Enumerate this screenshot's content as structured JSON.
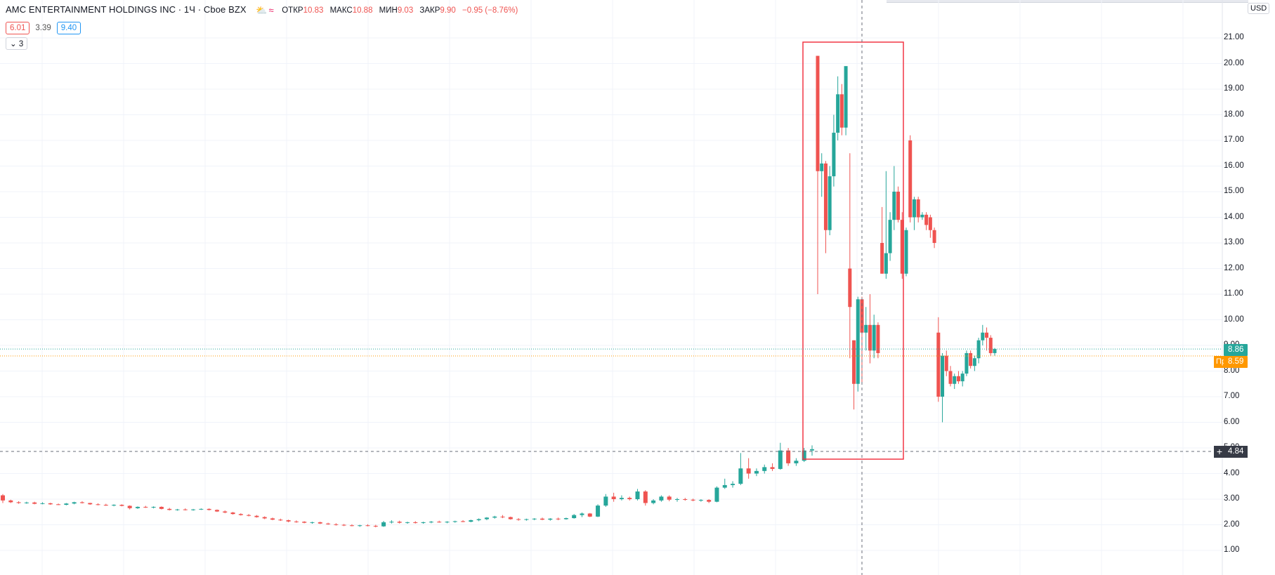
{
  "header": {
    "title": "AMC ENTERTAINMENT HOLDINGS INC · 1Ч · Cboe BZX",
    "icons": [
      "sun-cloud-icon",
      "wave-icon"
    ],
    "ohlc": {
      "open_label": "ОТКР",
      "open": "10.83",
      "high_label": "МАКС",
      "high": "10.88",
      "low_label": "МИН",
      "low": "9.03",
      "close_label": "ЗАКР",
      "close": "9.90",
      "change": "−0.95 (−8.76%)"
    },
    "bid": "6.01",
    "spread": "3.39",
    "ask": "9.40",
    "indicators_toggle": "3"
  },
  "axis": {
    "currency": "USD",
    "ticks": [
      "21.00",
      "20.00",
      "19.00",
      "18.00",
      "17.00",
      "16.00",
      "15.00",
      "14.00",
      "13.00",
      "12.00",
      "11.00",
      "10.00",
      "9.00",
      "8.00",
      "7.00",
      "6.00",
      "5.00",
      "4.00",
      "3.00",
      "2.00",
      "1.00"
    ],
    "last_price": "8.86",
    "pre_label": "Пре-",
    "pre_price": "8.59",
    "crosshair_price": "4.84"
  },
  "colors": {
    "up": "#26a69a",
    "down": "#ef5350",
    "grid": "#f0f3fa",
    "highlight_box": "#f23645",
    "pre_line": "#ff9800",
    "last_line": "#26a69a"
  },
  "chart_data": {
    "type": "candlestick",
    "ylim": [
      0.5,
      22
    ],
    "grid": true,
    "candles": [
      {
        "o": 3.15,
        "h": 3.2,
        "l": 2.85,
        "c": 2.95
      },
      {
        "o": 2.95,
        "h": 2.98,
        "l": 2.85,
        "c": 2.88
      },
      {
        "o": 2.88,
        "h": 2.92,
        "l": 2.82,
        "c": 2.85
      },
      {
        "o": 2.85,
        "h": 2.9,
        "l": 2.82,
        "c": 2.87
      },
      {
        "o": 2.87,
        "h": 2.9,
        "l": 2.8,
        "c": 2.82
      },
      {
        "o": 2.82,
        "h": 2.88,
        "l": 2.8,
        "c": 2.84
      },
      {
        "o": 2.84,
        "h": 2.86,
        "l": 2.78,
        "c": 2.8
      },
      {
        "o": 2.8,
        "h": 2.83,
        "l": 2.77,
        "c": 2.78
      },
      {
        "o": 2.78,
        "h": 2.85,
        "l": 2.76,
        "c": 2.83
      },
      {
        "o": 2.83,
        "h": 2.9,
        "l": 2.8,
        "c": 2.88
      },
      {
        "o": 2.88,
        "h": 2.92,
        "l": 2.83,
        "c": 2.85
      },
      {
        "o": 2.85,
        "h": 2.86,
        "l": 2.78,
        "c": 2.8
      },
      {
        "o": 2.8,
        "h": 2.84,
        "l": 2.76,
        "c": 2.78
      },
      {
        "o": 2.78,
        "h": 2.82,
        "l": 2.74,
        "c": 2.76
      },
      {
        "o": 2.76,
        "h": 2.8,
        "l": 2.72,
        "c": 2.78
      },
      {
        "o": 2.78,
        "h": 2.8,
        "l": 2.72,
        "c": 2.74
      },
      {
        "o": 2.74,
        "h": 2.76,
        "l": 2.6,
        "c": 2.65
      },
      {
        "o": 2.65,
        "h": 2.72,
        "l": 2.62,
        "c": 2.7
      },
      {
        "o": 2.7,
        "h": 2.74,
        "l": 2.66,
        "c": 2.68
      },
      {
        "o": 2.68,
        "h": 2.72,
        "l": 2.64,
        "c": 2.7
      },
      {
        "o": 2.7,
        "h": 2.72,
        "l": 2.6,
        "c": 2.62
      },
      {
        "o": 2.62,
        "h": 2.66,
        "l": 2.56,
        "c": 2.58
      },
      {
        "o": 2.58,
        "h": 2.62,
        "l": 2.55,
        "c": 2.6
      },
      {
        "o": 2.6,
        "h": 2.64,
        "l": 2.56,
        "c": 2.58
      },
      {
        "o": 2.58,
        "h": 2.62,
        "l": 2.55,
        "c": 2.6
      },
      {
        "o": 2.6,
        "h": 2.64,
        "l": 2.58,
        "c": 2.62
      },
      {
        "o": 2.62,
        "h": 2.64,
        "l": 2.56,
        "c": 2.58
      },
      {
        "o": 2.58,
        "h": 2.6,
        "l": 2.5,
        "c": 2.52
      },
      {
        "o": 2.52,
        "h": 2.56,
        "l": 2.45,
        "c": 2.48
      },
      {
        "o": 2.48,
        "h": 2.5,
        "l": 2.4,
        "c": 2.42
      },
      {
        "o": 2.42,
        "h": 2.45,
        "l": 2.36,
        "c": 2.38
      },
      {
        "o": 2.38,
        "h": 2.42,
        "l": 2.33,
        "c": 2.35
      },
      {
        "o": 2.35,
        "h": 2.38,
        "l": 2.28,
        "c": 2.3
      },
      {
        "o": 2.3,
        "h": 2.33,
        "l": 2.22,
        "c": 2.25
      },
      {
        "o": 2.25,
        "h": 2.28,
        "l": 2.18,
        "c": 2.2
      },
      {
        "o": 2.2,
        "h": 2.24,
        "l": 2.15,
        "c": 2.18
      },
      {
        "o": 2.18,
        "h": 2.2,
        "l": 2.1,
        "c": 2.13
      },
      {
        "o": 2.13,
        "h": 2.17,
        "l": 2.08,
        "c": 2.12
      },
      {
        "o": 2.12,
        "h": 2.14,
        "l": 2.06,
        "c": 2.08
      },
      {
        "o": 2.08,
        "h": 2.12,
        "l": 2.04,
        "c": 2.1
      },
      {
        "o": 2.1,
        "h": 2.12,
        "l": 2.03,
        "c": 2.05
      },
      {
        "o": 2.05,
        "h": 2.08,
        "l": 2.0,
        "c": 2.02
      },
      {
        "o": 2.02,
        "h": 2.06,
        "l": 1.97,
        "c": 2.0
      },
      {
        "o": 2.0,
        "h": 2.03,
        "l": 1.95,
        "c": 1.98
      },
      {
        "o": 1.98,
        "h": 2.02,
        "l": 1.94,
        "c": 1.96
      },
      {
        "o": 1.96,
        "h": 2.0,
        "l": 1.92,
        "c": 1.98
      },
      {
        "o": 1.98,
        "h": 2.02,
        "l": 1.94,
        "c": 1.96
      },
      {
        "o": 1.96,
        "h": 2.0,
        "l": 1.9,
        "c": 1.94
      },
      {
        "o": 1.94,
        "h": 2.15,
        "l": 1.92,
        "c": 2.1
      },
      {
        "o": 2.1,
        "h": 2.18,
        "l": 2.05,
        "c": 2.12
      },
      {
        "o": 2.12,
        "h": 2.16,
        "l": 2.05,
        "c": 2.08
      },
      {
        "o": 2.08,
        "h": 2.12,
        "l": 2.04,
        "c": 2.1
      },
      {
        "o": 2.1,
        "h": 2.14,
        "l": 2.05,
        "c": 2.07
      },
      {
        "o": 2.07,
        "h": 2.12,
        "l": 2.04,
        "c": 2.1
      },
      {
        "o": 2.1,
        "h": 2.15,
        "l": 2.06,
        "c": 2.12
      },
      {
        "o": 2.12,
        "h": 2.16,
        "l": 2.08,
        "c": 2.1
      },
      {
        "o": 2.1,
        "h": 2.14,
        "l": 2.06,
        "c": 2.12
      },
      {
        "o": 2.12,
        "h": 2.16,
        "l": 2.08,
        "c": 2.14
      },
      {
        "o": 2.14,
        "h": 2.18,
        "l": 2.1,
        "c": 2.12
      },
      {
        "o": 2.12,
        "h": 2.2,
        "l": 2.1,
        "c": 2.18
      },
      {
        "o": 2.18,
        "h": 2.25,
        "l": 2.14,
        "c": 2.22
      },
      {
        "o": 2.22,
        "h": 2.3,
        "l": 2.18,
        "c": 2.28
      },
      {
        "o": 2.28,
        "h": 2.35,
        "l": 2.24,
        "c": 2.32
      },
      {
        "o": 2.32,
        "h": 2.38,
        "l": 2.26,
        "c": 2.3
      },
      {
        "o": 2.3,
        "h": 2.32,
        "l": 2.2,
        "c": 2.22
      },
      {
        "o": 2.22,
        "h": 2.26,
        "l": 2.16,
        "c": 2.2
      },
      {
        "o": 2.2,
        "h": 2.24,
        "l": 2.16,
        "c": 2.22
      },
      {
        "o": 2.22,
        "h": 2.26,
        "l": 2.18,
        "c": 2.24
      },
      {
        "o": 2.24,
        "h": 2.28,
        "l": 2.18,
        "c": 2.2
      },
      {
        "o": 2.2,
        "h": 2.26,
        "l": 2.16,
        "c": 2.24
      },
      {
        "o": 2.24,
        "h": 2.28,
        "l": 2.18,
        "c": 2.22
      },
      {
        "o": 2.22,
        "h": 2.28,
        "l": 2.2,
        "c": 2.26
      },
      {
        "o": 2.26,
        "h": 2.42,
        "l": 2.24,
        "c": 2.38
      },
      {
        "o": 2.38,
        "h": 2.48,
        "l": 2.3,
        "c": 2.44
      },
      {
        "o": 2.44,
        "h": 2.46,
        "l": 2.3,
        "c": 2.32
      },
      {
        "o": 2.32,
        "h": 2.8,
        "l": 2.3,
        "c": 2.75
      },
      {
        "o": 2.75,
        "h": 3.2,
        "l": 2.7,
        "c": 3.1
      },
      {
        "o": 3.1,
        "h": 3.25,
        "l": 2.9,
        "c": 3.0
      },
      {
        "o": 3.0,
        "h": 3.15,
        "l": 2.95,
        "c": 3.05
      },
      {
        "o": 3.05,
        "h": 3.1,
        "l": 2.95,
        "c": 3.0
      },
      {
        "o": 3.0,
        "h": 3.4,
        "l": 2.95,
        "c": 3.3
      },
      {
        "o": 3.3,
        "h": 3.35,
        "l": 2.75,
        "c": 2.85
      },
      {
        "o": 2.85,
        "h": 3.0,
        "l": 2.8,
        "c": 2.95
      },
      {
        "o": 2.95,
        "h": 3.15,
        "l": 2.9,
        "c": 3.1
      },
      {
        "o": 3.1,
        "h": 3.15,
        "l": 2.92,
        "c": 2.98
      },
      {
        "o": 2.98,
        "h": 3.05,
        "l": 2.9,
        "c": 3.0
      },
      {
        "o": 3.0,
        "h": 3.05,
        "l": 2.94,
        "c": 2.98
      },
      {
        "o": 2.98,
        "h": 3.02,
        "l": 2.92,
        "c": 2.95
      },
      {
        "o": 2.95,
        "h": 3.0,
        "l": 2.9,
        "c": 2.97
      },
      {
        "o": 2.97,
        "h": 3.0,
        "l": 2.85,
        "c": 2.9
      },
      {
        "o": 2.9,
        "h": 3.5,
        "l": 2.88,
        "c": 3.45
      },
      {
        "o": 3.45,
        "h": 3.8,
        "l": 3.4,
        "c": 3.55
      },
      {
        "o": 3.55,
        "h": 3.7,
        "l": 3.45,
        "c": 3.6
      },
      {
        "o": 3.6,
        "h": 4.8,
        "l": 3.55,
        "c": 4.2
      },
      {
        "o": 4.2,
        "h": 4.6,
        "l": 3.8,
        "c": 4.0
      },
      {
        "o": 4.0,
        "h": 4.2,
        "l": 3.9,
        "c": 4.1
      },
      {
        "o": 4.1,
        "h": 4.35,
        "l": 4.0,
        "c": 4.25
      },
      {
        "o": 4.25,
        "h": 4.4,
        "l": 4.1,
        "c": 4.18
      },
      {
        "o": 4.18,
        "h": 5.2,
        "l": 4.15,
        "c": 4.9
      },
      {
        "o": 4.9,
        "h": 5.0,
        "l": 4.3,
        "c": 4.4
      },
      {
        "o": 4.4,
        "h": 4.6,
        "l": 4.3,
        "c": 4.5
      },
      {
        "o": 4.5,
        "h": 5.0,
        "l": 4.45,
        "c": 4.9
      },
      {
        "o": 4.9,
        "h": 5.1,
        "l": 4.7,
        "c": 4.95
      },
      {
        "o": 20.3,
        "h": 20.3,
        "l": 11.0,
        "c": 15.8
      },
      {
        "o": 15.8,
        "h": 16.5,
        "l": 14.8,
        "c": 16.1
      },
      {
        "o": 16.1,
        "h": 16.2,
        "l": 12.6,
        "c": 13.5
      },
      {
        "o": 13.5,
        "h": 16.0,
        "l": 13.3,
        "c": 15.6
      },
      {
        "o": 15.6,
        "h": 18.0,
        "l": 15.2,
        "c": 17.3
      },
      {
        "o": 17.3,
        "h": 19.5,
        "l": 17.0,
        "c": 18.8
      },
      {
        "o": 18.8,
        "h": 19.2,
        "l": 17.2,
        "c": 17.5
      },
      {
        "o": 17.5,
        "h": 19.8,
        "l": 17.2,
        "c": 19.9
      },
      {
        "o": 12.0,
        "h": 16.5,
        "l": 8.5,
        "c": 10.5
      },
      {
        "o": 9.2,
        "h": 9.2,
        "l": 6.5,
        "c": 7.5
      },
      {
        "o": 7.5,
        "h": 10.9,
        "l": 7.2,
        "c": 10.8
      },
      {
        "o": 10.8,
        "h": 10.9,
        "l": 7.5,
        "c": 9.5
      },
      {
        "o": 9.5,
        "h": 10.5,
        "l": 8.8,
        "c": 9.8
      },
      {
        "o": 9.8,
        "h": 11.0,
        "l": 8.3,
        "c": 8.8
      },
      {
        "o": 8.8,
        "h": 10.2,
        "l": 8.5,
        "c": 9.8
      },
      {
        "o": 9.8,
        "h": 9.9,
        "l": 8.5,
        "c": 8.7
      },
      {
        "o": 13.0,
        "h": 14.4,
        "l": 11.8,
        "c": 11.8
      },
      {
        "o": 11.8,
        "h": 15.8,
        "l": 11.6,
        "c": 12.6
      },
      {
        "o": 12.6,
        "h": 14.2,
        "l": 12.3,
        "c": 13.9
      },
      {
        "o": 13.9,
        "h": 16.0,
        "l": 13.5,
        "c": 15.0
      },
      {
        "o": 15.0,
        "h": 15.2,
        "l": 13.8,
        "c": 13.9
      },
      {
        "o": 13.9,
        "h": 14.2,
        "l": 11.6,
        "c": 11.8
      },
      {
        "o": 11.8,
        "h": 13.6,
        "l": 11.7,
        "c": 13.5
      },
      {
        "o": 17.0,
        "h": 17.2,
        "l": 13.8,
        "c": 14.0
      },
      {
        "o": 14.0,
        "h": 14.8,
        "l": 13.5,
        "c": 14.7
      },
      {
        "o": 14.7,
        "h": 14.8,
        "l": 13.8,
        "c": 14.0
      },
      {
        "o": 14.0,
        "h": 14.2,
        "l": 13.9,
        "c": 14.1
      },
      {
        "o": 14.1,
        "h": 14.2,
        "l": 13.5,
        "c": 13.7
      },
      {
        "o": 14.0,
        "h": 14.1,
        "l": 13.2,
        "c": 13.5
      },
      {
        "o": 13.5,
        "h": 13.6,
        "l": 12.8,
        "c": 13.0
      },
      {
        "o": 9.5,
        "h": 10.1,
        "l": 6.8,
        "c": 7.0
      },
      {
        "o": 7.0,
        "h": 8.7,
        "l": 6.0,
        "c": 8.6
      },
      {
        "o": 8.6,
        "h": 8.8,
        "l": 7.8,
        "c": 8.0
      },
      {
        "o": 8.0,
        "h": 8.2,
        "l": 7.4,
        "c": 7.5
      },
      {
        "o": 7.5,
        "h": 7.9,
        "l": 7.3,
        "c": 7.8
      },
      {
        "o": 7.8,
        "h": 8.0,
        "l": 7.5,
        "c": 7.6
      },
      {
        "o": 7.6,
        "h": 8.0,
        "l": 7.4,
        "c": 7.9
      },
      {
        "o": 7.9,
        "h": 8.8,
        "l": 7.8,
        "c": 8.7
      },
      {
        "o": 8.7,
        "h": 8.8,
        "l": 8.1,
        "c": 8.2
      },
      {
        "o": 8.2,
        "h": 8.6,
        "l": 8.0,
        "c": 8.5
      },
      {
        "o": 8.5,
        "h": 9.3,
        "l": 8.3,
        "c": 9.2
      },
      {
        "o": 9.2,
        "h": 9.8,
        "l": 9.0,
        "c": 9.5
      },
      {
        "o": 9.5,
        "h": 9.7,
        "l": 8.8,
        "c": 9.3
      },
      {
        "o": 9.3,
        "h": 9.4,
        "l": 8.6,
        "c": 8.7
      },
      {
        "o": 8.7,
        "h": 8.9,
        "l": 8.6,
        "c": 8.86
      }
    ]
  }
}
